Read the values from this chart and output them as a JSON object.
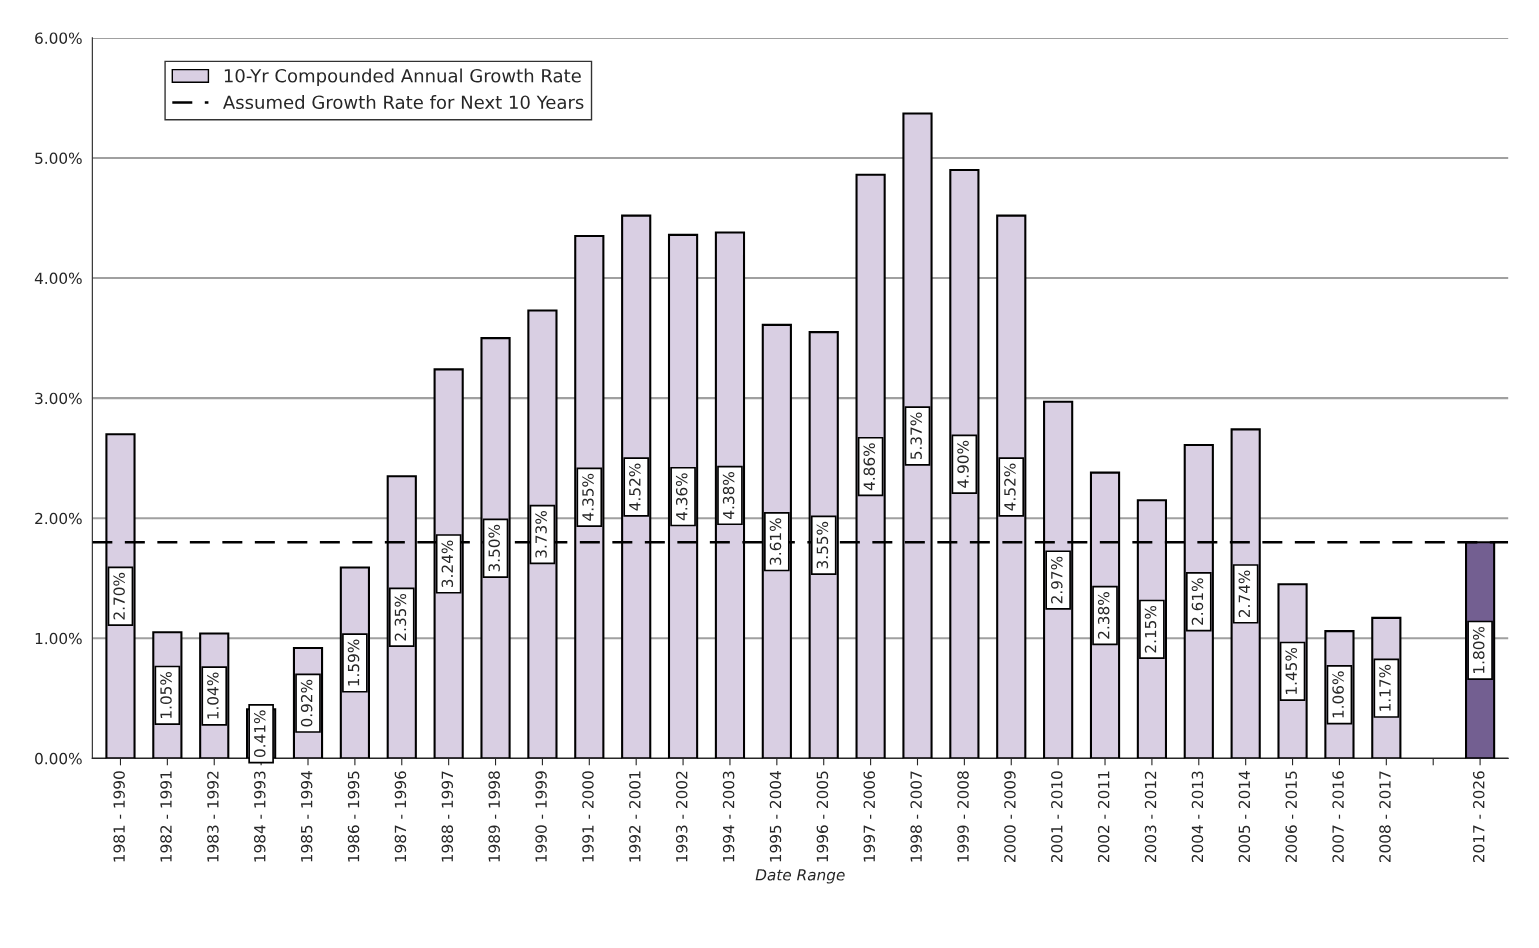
{
  "chart_data": {
    "type": "bar",
    "xlabel": "Date Range",
    "categories": [
      "1981 - 1990",
      "1982 - 1991",
      "1983 - 1992",
      "1984 - 1993",
      "1985 - 1994",
      "1986 - 1995",
      "1987 - 1996",
      "1988 - 1997",
      "1989 - 1998",
      "1990 - 1999",
      "1991 - 2000",
      "1992 - 2001",
      "1993 - 2002",
      "1994 - 2003",
      "1995 - 2004",
      "1996 - 2005",
      "1997 - 2006",
      "1998 - 2007",
      "1999 - 2008",
      "2000 - 2009",
      "2001 - 2010",
      "2002 - 2011",
      "2003 - 2012",
      "2004 - 2013",
      "2005 - 2014",
      "2006 - 2015",
      "2007 - 2016",
      "2008 - 2017",
      null,
      "2017 - 2026"
    ],
    "series": [
      {
        "name": "10-Yr Compounded Annual Growth Rate",
        "color": "#d9cfe3",
        "colors": [
          "#d9cfe3",
          "#d9cfe3",
          "#d9cfe3",
          "#d9cfe3",
          "#d9cfe3",
          "#d9cfe3",
          "#d9cfe3",
          "#d9cfe3",
          "#d9cfe3",
          "#d9cfe3",
          "#d9cfe3",
          "#d9cfe3",
          "#d9cfe3",
          "#d9cfe3",
          "#d9cfe3",
          "#d9cfe3",
          "#d9cfe3",
          "#d9cfe3",
          "#d9cfe3",
          "#d9cfe3",
          "#d9cfe3",
          "#d9cfe3",
          "#d9cfe3",
          "#d9cfe3",
          "#d9cfe3",
          "#d9cfe3",
          "#d9cfe3",
          "#d9cfe3",
          "#d9cfe3",
          "#735f91"
        ],
        "values": [
          2.7,
          1.05,
          1.04,
          0.41,
          0.92,
          1.59,
          2.35,
          3.24,
          3.5,
          3.73,
          4.35,
          4.52,
          4.36,
          4.38,
          3.61,
          3.55,
          4.86,
          5.37,
          4.9,
          4.52,
          2.97,
          2.38,
          2.15,
          2.61,
          2.74,
          1.45,
          1.06,
          1.17,
          null,
          1.8
        ],
        "value_labels": [
          "2.70%",
          "1.05%",
          "1.04%",
          "0.41%",
          "0.92%",
          "1.59%",
          "2.35%",
          "3.24%",
          "3.50%",
          "3.73%",
          "4.35%",
          "4.52%",
          "4.36%",
          "4.38%",
          "3.61%",
          "3.55%",
          "4.86%",
          "5.37%",
          "4.90%",
          "4.52%",
          "2.97%",
          "2.38%",
          "2.15%",
          "2.61%",
          "2.74%",
          "1.45%",
          "1.06%",
          "1.17%",
          null,
          "1.80%"
        ]
      }
    ],
    "ref_lines": [
      {
        "axis": "y",
        "value": 1.8,
        "label": "Assumed Growth Rate for Next 10 Years",
        "color": "#000000",
        "line_style": "dashed"
      }
    ],
    "ylim": [
      0,
      6
    ],
    "yticks": [
      {
        "value": 0,
        "label": "0.00%"
      },
      {
        "value": 1,
        "label": "1.00%"
      },
      {
        "value": 2,
        "label": "2.00%"
      },
      {
        "value": 3,
        "label": "3.00%"
      },
      {
        "value": 4,
        "label": "4.00%"
      },
      {
        "value": 5,
        "label": "5.00%"
      },
      {
        "value": 6,
        "label": "6.00%"
      }
    ],
    "grid": "y",
    "legend": "top left"
  }
}
